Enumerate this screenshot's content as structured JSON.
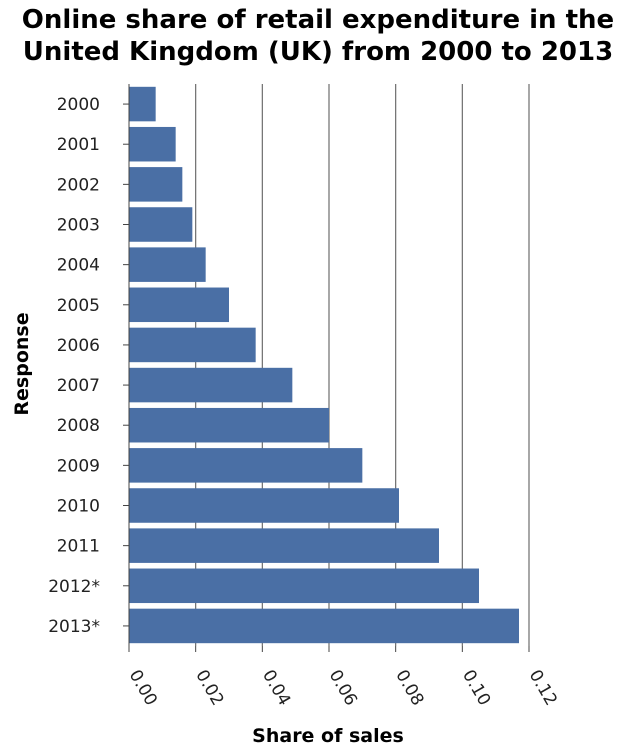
{
  "chart_data": {
    "type": "bar",
    "orientation": "horizontal",
    "title_lines": [
      "Online share of retail expenditure in the",
      "United Kingdom (UK) from 2000 to 2013"
    ],
    "xlabel": "Share of sales",
    "ylabel": "Response",
    "categories": [
      "2000",
      "2001",
      "2002",
      "2003",
      "2004",
      "2005",
      "2006",
      "2007",
      "2008",
      "2009",
      "2010",
      "2011",
      "2012*",
      "2013*"
    ],
    "values": [
      0.008,
      0.014,
      0.016,
      0.019,
      0.023,
      0.03,
      0.038,
      0.049,
      0.06,
      0.07,
      0.081,
      0.093,
      0.105,
      0.117
    ],
    "xlim": [
      0,
      0.12
    ],
    "xticks": [
      "0.00",
      "0.02",
      "0.04",
      "0.06",
      "0.08",
      "0.10",
      "0.12"
    ],
    "grid": "vertical",
    "bar_color": "#4a6fa5"
  }
}
